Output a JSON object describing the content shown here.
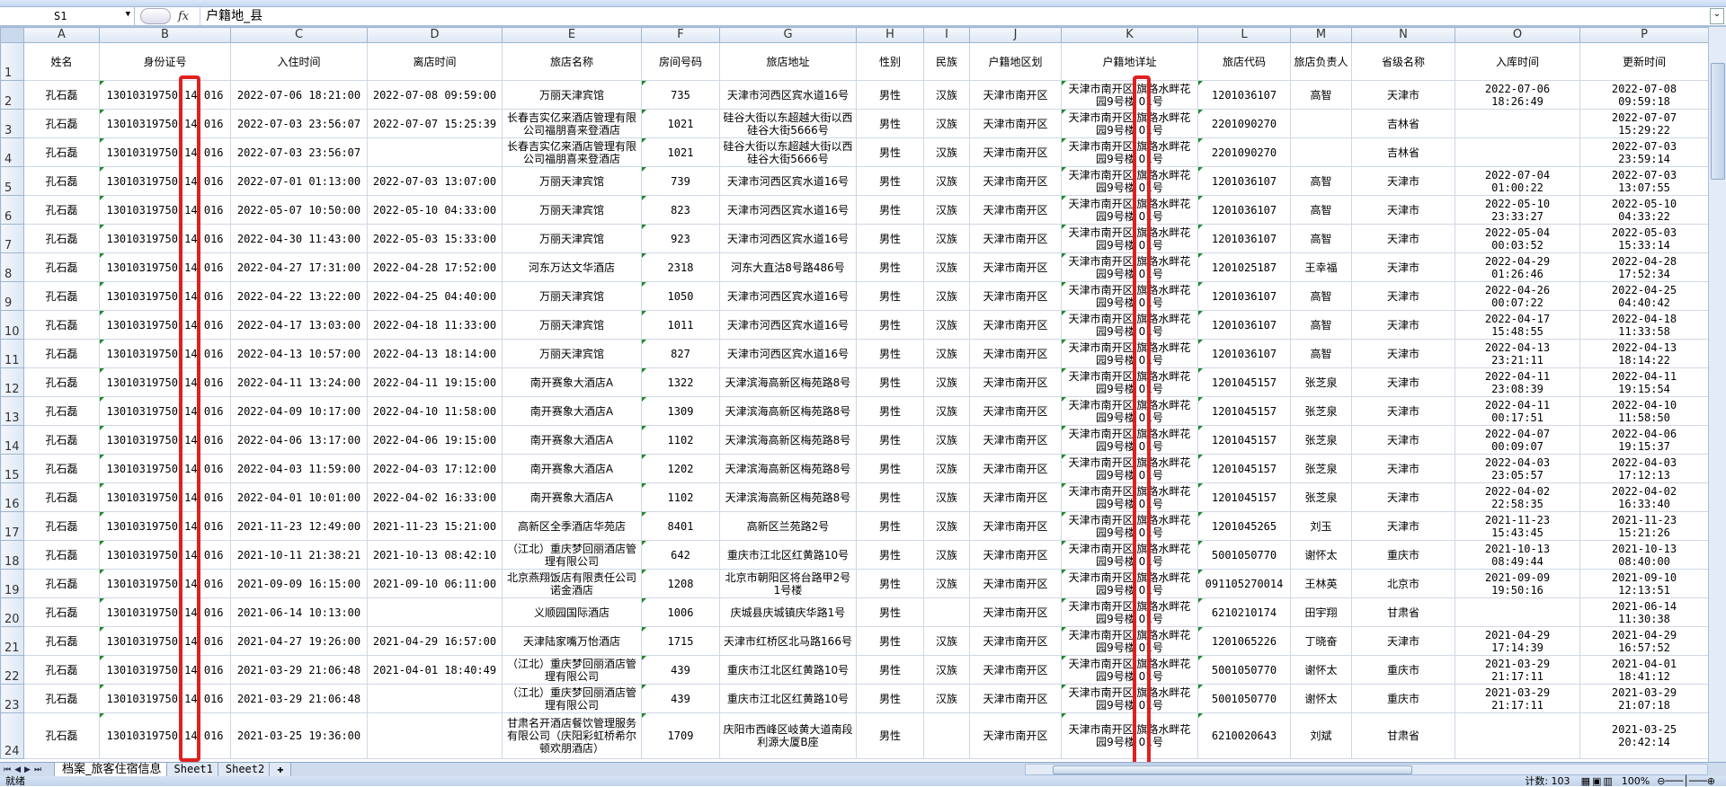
{
  "formula_bar": {
    "name_box": "S1",
    "fx": "fx",
    "formula": "户籍地_县"
  },
  "columns": [
    "A",
    "B",
    "C",
    "D",
    "E",
    "F",
    "G",
    "H",
    "I",
    "J",
    "K",
    "L",
    "M",
    "N",
    "O",
    "P"
  ],
  "headers": [
    "姓名",
    "身份证号",
    "入住时间",
    "离店时间",
    "旅店名称",
    "房间号码",
    "旅店地址",
    "性别",
    "民族",
    "户籍地区划",
    "户籍地详址",
    "旅店代码",
    "旅店负责人",
    "省级名称",
    "入库时间",
    "更新时间"
  ],
  "rows": [
    [
      "孔石磊",
      "13010319750 14 016",
      "2022-07-06 18:21:00",
      "2022-07-08 09:59:00",
      "万丽天津宾馆",
      "735",
      "天津市河西区宾水道16号",
      "男性",
      "汉族",
      "天津市南开区",
      "天津市南开区 旗路水畔花园9号楼 01号",
      "1201036107",
      "高智",
      "天津市",
      "2022-07-06 18:26:49",
      "2022-07-08 09:59:18"
    ],
    [
      "孔石磊",
      "13010319750 14 016",
      "2022-07-03 23:56:07",
      "2022-07-07 15:25:39",
      "长春吉实亿来酒店管理有限公司福朋喜来登酒店",
      "1021",
      "硅谷大街以东超越大街以西硅谷大街5666号",
      "男性",
      "汉族",
      "天津市南开区",
      "天津市南开区 旗路水畔花园9号楼 01号",
      "2201090270",
      "",
      "吉林省",
      "",
      "2022-07-07 15:29:22"
    ],
    [
      "孔石磊",
      "13010319750 14 016",
      "2022-07-03 23:56:07",
      "",
      "长春吉实亿来酒店管理有限公司福朋喜来登酒店",
      "1021",
      "硅谷大街以东超越大街以西硅谷大街5666号",
      "男性",
      "汉族",
      "天津市南开区",
      "天津市南开区 旗路水畔花园9号楼 01号",
      "2201090270",
      "",
      "吉林省",
      "",
      "2022-07-03 23:59:14"
    ],
    [
      "孔石磊",
      "13010319750 14 016",
      "2022-07-01 01:13:00",
      "2022-07-03 13:07:00",
      "万丽天津宾馆",
      "739",
      "天津市河西区宾水道16号",
      "男性",
      "汉族",
      "天津市南开区",
      "天津市南开区 旗路水畔花园9号楼 01号",
      "1201036107",
      "高智",
      "天津市",
      "2022-07-04 01:00:22",
      "2022-07-03 13:07:55"
    ],
    [
      "孔石磊",
      "13010319750 14 016",
      "2022-05-07 10:50:00",
      "2022-05-10 04:33:00",
      "万丽天津宾馆",
      "823",
      "天津市河西区宾水道16号",
      "男性",
      "汉族",
      "天津市南开区",
      "天津市南开区 旗路水畔花园9号楼 01号",
      "1201036107",
      "高智",
      "天津市",
      "2022-05-10 23:33:27",
      "2022-05-10 04:33:22"
    ],
    [
      "孔石磊",
      "13010319750 14 016",
      "2022-04-30 11:43:00",
      "2022-05-03 15:33:00",
      "万丽天津宾馆",
      "923",
      "天津市河西区宾水道16号",
      "男性",
      "汉族",
      "天津市南开区",
      "天津市南开区 旗路水畔花园9号楼 01号",
      "1201036107",
      "高智",
      "天津市",
      "2022-05-04 00:03:52",
      "2022-05-03 15:33:14"
    ],
    [
      "孔石磊",
      "13010319750 14 016",
      "2022-04-27 17:31:00",
      "2022-04-28 17:52:00",
      "河东万达文华酒店",
      "2318",
      "河东大直沽8号路486号",
      "男性",
      "汉族",
      "天津市南开区",
      "天津市南开区 旗路水畔花园9号楼 01号",
      "1201025187",
      "王幸福",
      "天津市",
      "2022-04-29 01:26:46",
      "2022-04-28 17:52:34"
    ],
    [
      "孔石磊",
      "13010319750 14 016",
      "2022-04-22 13:22:00",
      "2022-04-25 04:40:00",
      "万丽天津宾馆",
      "1050",
      "天津市河西区宾水道16号",
      "男性",
      "汉族",
      "天津市南开区",
      "天津市南开区 旗路水畔花园9号楼 01号",
      "1201036107",
      "高智",
      "天津市",
      "2022-04-26 00:07:22",
      "2022-04-25 04:40:42"
    ],
    [
      "孔石磊",
      "13010319750 14 016",
      "2022-04-17 13:03:00",
      "2022-04-18 11:33:00",
      "万丽天津宾馆",
      "1011",
      "天津市河西区宾水道16号",
      "男性",
      "汉族",
      "天津市南开区",
      "天津市南开区 旗路水畔花园9号楼 01号",
      "1201036107",
      "高智",
      "天津市",
      "2022-04-17 15:48:55",
      "2022-04-18 11:33:58"
    ],
    [
      "孔石磊",
      "13010319750 14 016",
      "2022-04-13 10:57:00",
      "2022-04-13 18:14:00",
      "万丽天津宾馆",
      "827",
      "天津市河西区宾水道16号",
      "男性",
      "汉族",
      "天津市南开区",
      "天津市南开区 旗路水畔花园9号楼 01号",
      "1201036107",
      "高智",
      "天津市",
      "2022-04-13 23:21:11",
      "2022-04-13 18:14:22"
    ],
    [
      "孔石磊",
      "13010319750 14 016",
      "2022-04-11 13:24:00",
      "2022-04-11 19:15:00",
      "南开赛象大酒店A",
      "1322",
      "天津滨海高新区梅苑路8号",
      "男性",
      "汉族",
      "天津市南开区",
      "天津市南开区 旗路水畔花园9号楼 01号",
      "1201045157",
      "张芝泉",
      "天津市",
      "2022-04-11 23:08:39",
      "2022-04-11 19:15:54"
    ],
    [
      "孔石磊",
      "13010319750 14 016",
      "2022-04-09 10:17:00",
      "2022-04-10 11:58:00",
      "南开赛象大酒店A",
      "1309",
      "天津滨海高新区梅苑路8号",
      "男性",
      "汉族",
      "天津市南开区",
      "天津市南开区 旗路水畔花园9号楼 01号",
      "1201045157",
      "张芝泉",
      "天津市",
      "2022-04-11 00:17:51",
      "2022-04-10 11:58:50"
    ],
    [
      "孔石磊",
      "13010319750 14 016",
      "2022-04-06 13:17:00",
      "2022-04-06 19:15:00",
      "南开赛象大酒店A",
      "1102",
      "天津滨海高新区梅苑路8号",
      "男性",
      "汉族",
      "天津市南开区",
      "天津市南开区 旗路水畔花园9号楼 01号",
      "1201045157",
      "张芝泉",
      "天津市",
      "2022-04-07 00:09:07",
      "2022-04-06 19:15:37"
    ],
    [
      "孔石磊",
      "13010319750 14 016",
      "2022-04-03 11:59:00",
      "2022-04-03 17:12:00",
      "南开赛象大酒店A",
      "1202",
      "天津滨海高新区梅苑路8号",
      "男性",
      "汉族",
      "天津市南开区",
      "天津市南开区 旗路水畔花园9号楼 01号",
      "1201045157",
      "张芝泉",
      "天津市",
      "2022-04-03 23:05:57",
      "2022-04-03 17:12:13"
    ],
    [
      "孔石磊",
      "13010319750 14 016",
      "2022-04-01 10:01:00",
      "2022-04-02 16:33:00",
      "南开赛象大酒店A",
      "1102",
      "天津滨海高新区梅苑路8号",
      "男性",
      "汉族",
      "天津市南开区",
      "天津市南开区 旗路水畔花园9号楼 01号",
      "1201045157",
      "张芝泉",
      "天津市",
      "2022-04-02 22:58:35",
      "2022-04-02 16:33:40"
    ],
    [
      "孔石磊",
      "13010319750 14 016",
      "2021-11-23 12:49:00",
      "2021-11-23 15:21:00",
      "高新区全季酒店华苑店",
      "8401",
      "高新区兰苑路2号",
      "男性",
      "汉族",
      "天津市南开区",
      "天津市南开区 旗路水畔花园9号楼 01号",
      "1201045265",
      "刘玉",
      "天津市",
      "2021-11-23 15:43:45",
      "2021-11-23 15:21:26"
    ],
    [
      "孔石磊",
      "13010319750 14 016",
      "2021-10-11 21:38:21",
      "2021-10-13 08:42:10",
      "（江北）重庆梦回丽酒店管理有限公司",
      "642",
      "重庆市江北区红黄路10号",
      "男性",
      "汉族",
      "天津市南开区",
      "天津市南开区 旗路水畔花园9号楼 01号",
      "5001050770",
      "谢怀太",
      "重庆市",
      "2021-10-13 08:49:44",
      "2021-10-13 08:40:00"
    ],
    [
      "孔石磊",
      "13010319750 14 016",
      "2021-09-09 16:15:00",
      "2021-09-10 06:11:00",
      "北京燕翔饭店有限责任公司诺金酒店",
      "1208",
      "北京市朝阳区将台路甲2号1号楼",
      "男性",
      "汉族",
      "天津市南开区",
      "天津市南开区 旗路水畔花园9号楼 01号",
      "091105270014",
      "王林英",
      "北京市",
      "2021-09-09 19:50:16",
      "2021-09-10 12:13:51"
    ],
    [
      "孔石磊",
      "13010319750 14 016",
      "2021-06-14 10:13:00",
      "",
      "义顺园国际酒店",
      "1006",
      "庆城县庆城镇庆华路1号",
      "男性",
      "",
      "天津市南开区",
      "天津市南开区 旗路水畔花园9号楼 01号",
      "6210210174",
      "田宇翔",
      "甘肃省",
      "",
      "2021-06-14 11:30:38"
    ],
    [
      "孔石磊",
      "13010319750 14 016",
      "2021-04-27 19:26:00",
      "2021-04-29 16:57:00",
      "天津陆家嘴万怡酒店",
      "1715",
      "天津市红桥区北马路166号",
      "男性",
      "汉族",
      "天津市南开区",
      "天津市南开区 旗路水畔花园9号楼 01号",
      "1201065226",
      "丁晓奋",
      "天津市",
      "2021-04-29 17:14:39",
      "2021-04-29 16:57:52"
    ],
    [
      "孔石磊",
      "13010319750 14 016",
      "2021-03-29 21:06:48",
      "2021-04-01 18:40:49",
      "（江北）重庆梦回丽酒店管理有限公司",
      "439",
      "重庆市江北区红黄路10号",
      "男性",
      "汉族",
      "天津市南开区",
      "天津市南开区 旗路水畔花园9号楼 01号",
      "5001050770",
      "谢怀太",
      "重庆市",
      "2021-03-29 21:17:11",
      "2021-04-01 18:41:12"
    ],
    [
      "孔石磊",
      "13010319750 14 016",
      "2021-03-29 21:06:48",
      "",
      "（江北）重庆梦回丽酒店管理有限公司",
      "439",
      "重庆市江北区红黄路10号",
      "男性",
      "汉族",
      "天津市南开区",
      "天津市南开区 旗路水畔花园9号楼 01号",
      "5001050770",
      "谢怀太",
      "重庆市",
      "2021-03-29 21:17:11",
      "2021-03-29 21:07:18"
    ],
    [
      "孔石磊",
      "13010319750 14 016",
      "2021-03-25 19:36:00",
      "",
      "甘肃名开酒店餐饮管理服务有限公司（庆阳彩虹桥希尔顿欢朋酒店）",
      "1709",
      "庆阳市西峰区岐黄大道南段利源大厦B座",
      "男性",
      "",
      "天津市南开区",
      "天津市南开区 旗路水畔花园9号楼 01号",
      "6210020643",
      "刘斌",
      "甘肃省",
      "",
      "2021-03-25 20:42:14"
    ]
  ],
  "sheet_tabs": [
    "档案_旅客住宿信息",
    "Sheet1",
    "Sheet2"
  ],
  "active_tab": 0,
  "status": {
    "ready": "就绪",
    "count": "计数: 103",
    "zoom": "100%"
  },
  "colors": {
    "highlight": "#e02020",
    "header_bg": "#dde7f4"
  }
}
